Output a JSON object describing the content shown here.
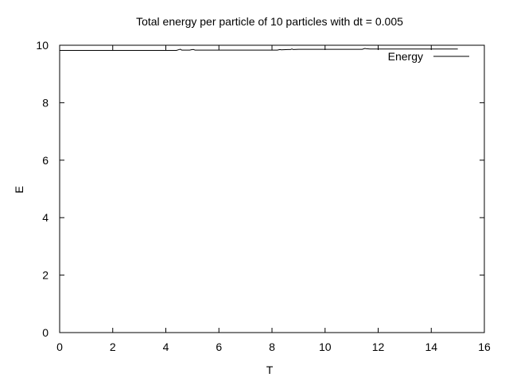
{
  "chart_data": {
    "type": "line",
    "title": "Total energy per particle of 10 particles with dt = 0.005",
    "xlabel": "T",
    "ylabel": "E",
    "xlim": [
      0,
      16
    ],
    "ylim": [
      0,
      10
    ],
    "xticks": [
      0,
      2,
      4,
      6,
      8,
      10,
      12,
      14,
      16
    ],
    "yticks": [
      0,
      2,
      4,
      6,
      8,
      10
    ],
    "grid": false,
    "legend_position": "top-right",
    "series": [
      {
        "name": "Energy",
        "color": "#000000",
        "x": [
          0,
          0.5,
          1,
          1.5,
          2,
          2.5,
          3,
          3.5,
          4,
          4.4,
          4.5,
          4.55,
          4.6,
          4.9,
          5.0,
          5.05,
          5.1,
          5.5,
          6,
          6.5,
          7,
          7.5,
          8,
          8.2,
          8.3,
          8.35,
          8.6,
          8.7,
          8.75,
          8.8,
          9,
          9.5,
          10,
          10.5,
          11,
          11.3,
          11.4,
          11.5,
          11.55,
          11.7,
          12,
          12.5,
          13,
          13.5,
          14,
          14.5,
          15
        ],
        "y": [
          9.82,
          9.82,
          9.82,
          9.82,
          9.82,
          9.82,
          9.82,
          9.82,
          9.82,
          9.82,
          9.85,
          9.86,
          9.83,
          9.83,
          9.85,
          9.85,
          9.83,
          9.83,
          9.83,
          9.83,
          9.83,
          9.83,
          9.83,
          9.83,
          9.85,
          9.84,
          9.85,
          9.85,
          9.87,
          9.85,
          9.86,
          9.86,
          9.86,
          9.86,
          9.86,
          9.86,
          9.86,
          9.89,
          9.88,
          9.87,
          9.87,
          9.87,
          9.87,
          9.87,
          9.87,
          9.87,
          9.87
        ]
      }
    ]
  }
}
